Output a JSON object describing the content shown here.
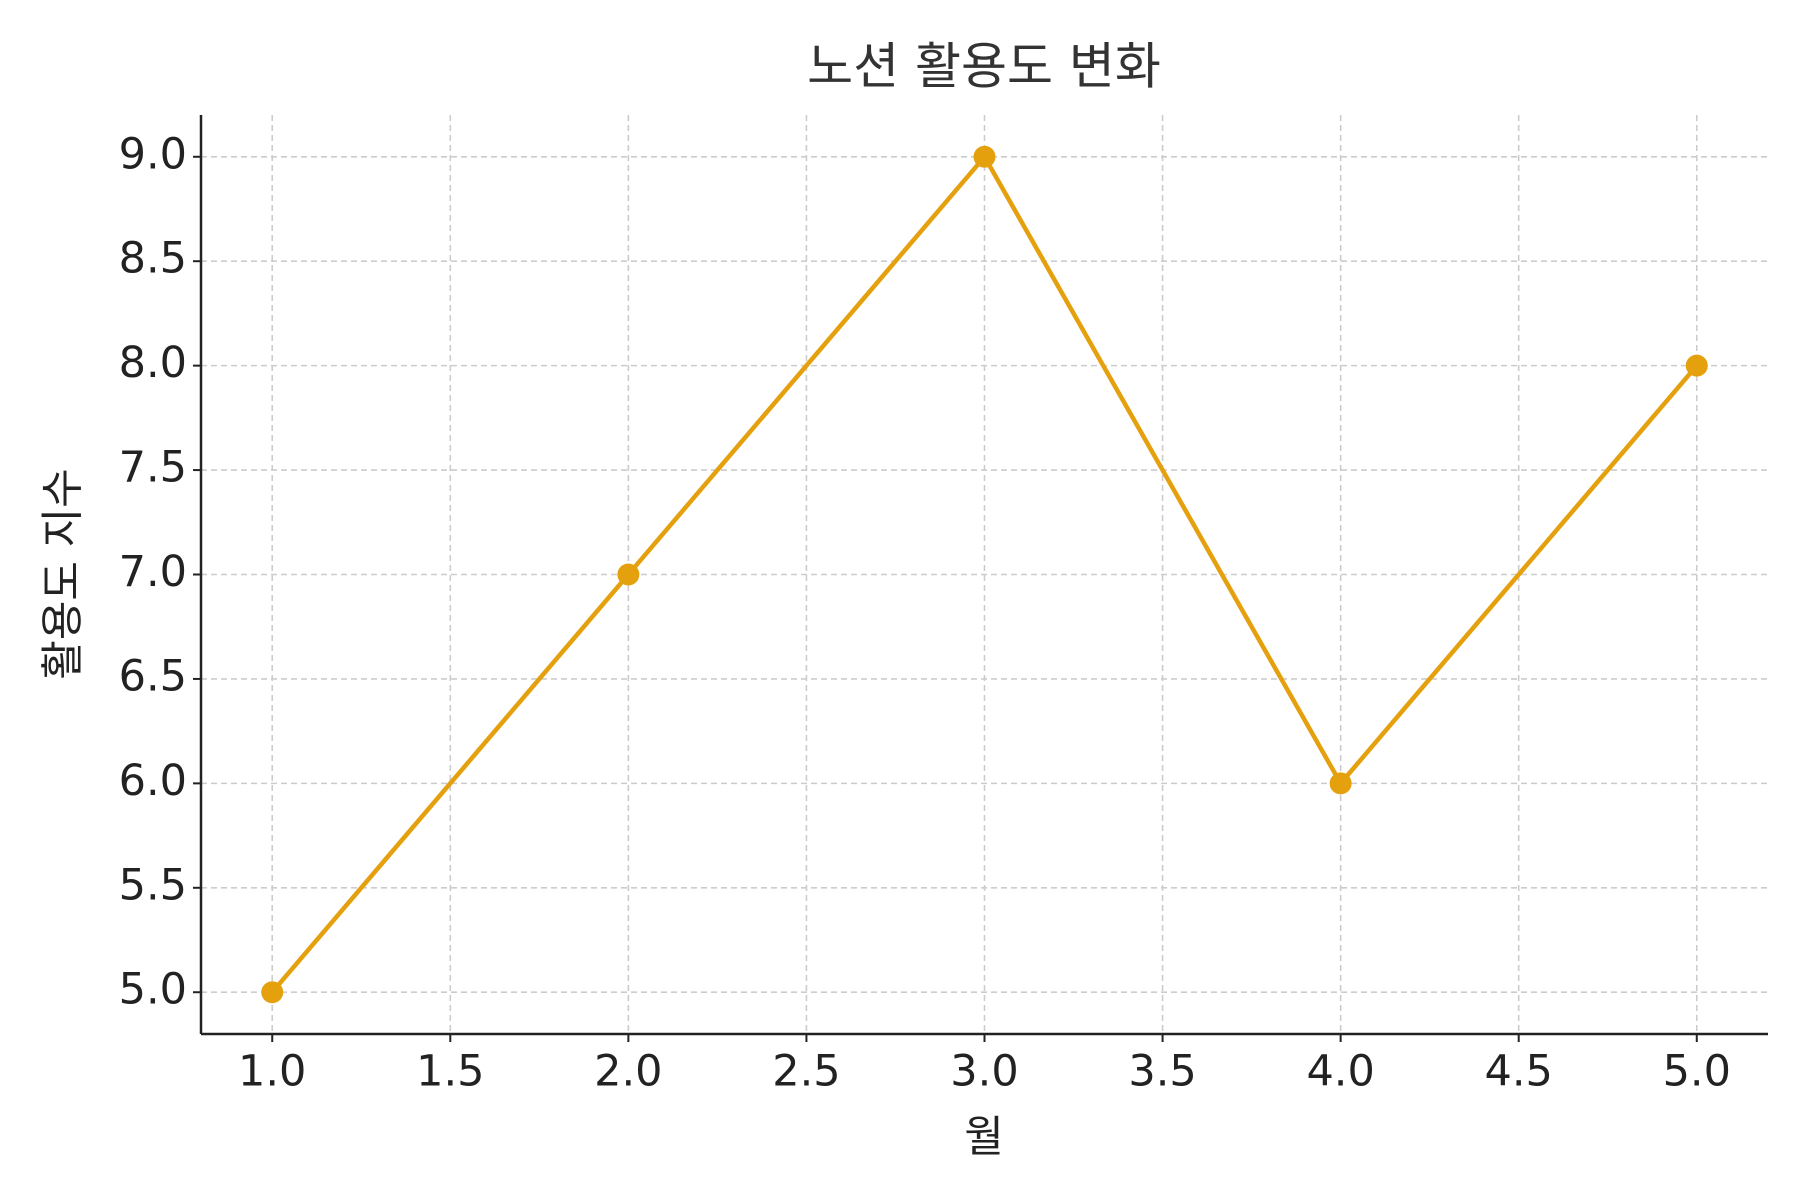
{
  "chart_data": {
    "type": "line",
    "title": "노션 활용도 변화",
    "x_label": "월",
    "y_label": "활용도 지수",
    "x": [
      1,
      2,
      3,
      4,
      5
    ],
    "series": [
      {
        "color": "#e5a00d",
        "values": [
          5,
          7,
          9,
          6,
          8
        ]
      }
    ],
    "xlim": [
      0.8,
      5.2
    ],
    "xticks": [
      {
        "value": 1,
        "label": "1.0"
      },
      1.5,
      {
        "value": 2,
        "label": "2.0"
      },
      2.5,
      {
        "value": 3,
        "label": "3.0"
      },
      3.5,
      {
        "value": 4,
        "label": "4.0"
      },
      4.5,
      {
        "value": 5,
        "label": "5.0"
      }
    ],
    "ylim": [
      4.8,
      9.2
    ],
    "yticks": [
      {
        "value": 5,
        "label": "5.0"
      },
      5.5,
      {
        "value": 6,
        "label": "6.0"
      },
      6.5,
      {
        "value": 7,
        "label": "7.0"
      },
      7.5,
      {
        "value": 8,
        "label": "8.0"
      },
      8.5,
      {
        "value": 9,
        "label": "9.0"
      }
    ],
    "grid": true
  }
}
